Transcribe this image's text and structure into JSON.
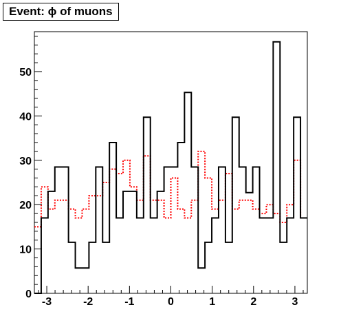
{
  "chart_data": {
    "type": "histogram",
    "title": "Event: ϕ of muons",
    "xlabel": "",
    "ylabel": "",
    "xlim": [
      -3.3,
      3.3
    ],
    "ylim": [
      0,
      59
    ],
    "xticks": [
      -3,
      -2,
      -1,
      0,
      1,
      2,
      3
    ],
    "xtick_labels": [
      "-3",
      "-2",
      "-1",
      "0",
      "1",
      "2",
      "3"
    ],
    "yticks": [
      0,
      10,
      20,
      30,
      40,
      50
    ],
    "ytick_labels": [
      "0",
      "10",
      "20",
      "30",
      "40",
      "50"
    ],
    "grid": false,
    "legend": "none",
    "bins": {
      "min": -3.3,
      "max": 3.3,
      "count": 40
    },
    "series": [
      {
        "color": "#000000",
        "style": "solid",
        "values": [
          0,
          17,
          23,
          28.5,
          28.5,
          11.5,
          5.7,
          5.7,
          11.5,
          28.5,
          11.5,
          34,
          17,
          23,
          23,
          17,
          39.7,
          17,
          23,
          28.5,
          28.5,
          34,
          45.3,
          28.5,
          5.7,
          11.5,
          17,
          28.5,
          11.5,
          39.7,
          28.5,
          22.7,
          28.5,
          17,
          17,
          56.7,
          11.5,
          17,
          39.7,
          17
        ]
      },
      {
        "color": "#ff0000",
        "style": "dotted",
        "values": [
          15,
          24,
          19,
          21,
          21,
          19,
          17,
          19,
          22,
          22,
          25,
          28,
          27,
          30,
          24,
          21,
          31,
          21,
          21,
          17,
          26,
          19,
          17,
          21,
          32,
          26,
          19,
          21,
          27,
          19,
          21,
          21,
          19,
          18,
          20,
          18,
          16,
          20,
          30,
          17
        ]
      }
    ]
  }
}
